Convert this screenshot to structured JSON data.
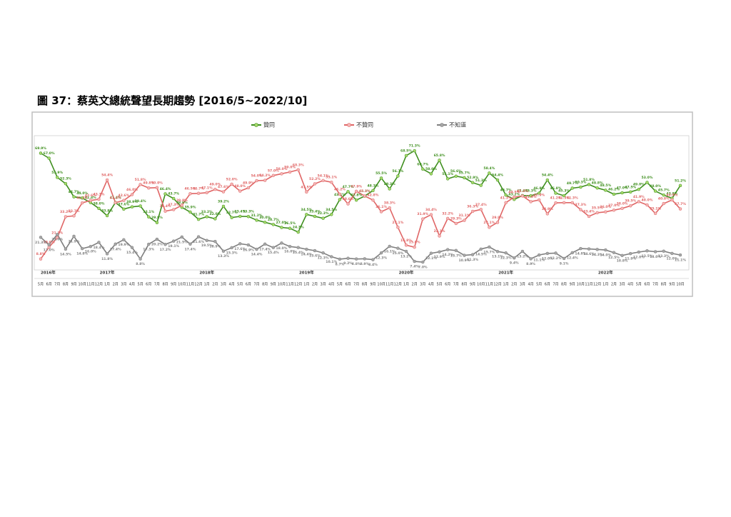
{
  "chart_data": {
    "type": "line",
    "title": "圖 37：蔡英文總統聲望長期趨勢 [2016/5~2022/10]",
    "categories": [
      "5月",
      "6月",
      "7月",
      "8月",
      "9月",
      "10月",
      "11月",
      "12月",
      "1月",
      "2月",
      "3月",
      "4月",
      "5月",
      "6月",
      "7月",
      "8月",
      "9月",
      "10月",
      "11月",
      "12月",
      "1月",
      "2月",
      "3月",
      "4月",
      "5月",
      "6月",
      "7月",
      "8月",
      "9月",
      "10月",
      "11月",
      "12月",
      "1月",
      "2月",
      "3月",
      "4月",
      "5月",
      "6月",
      "7月",
      "8月",
      "9月",
      "10月",
      "11月",
      "12月",
      "1月",
      "2月",
      "3月",
      "4月",
      "5月",
      "6月",
      "7月",
      "8月",
      "9月",
      "10月",
      "11月",
      "12月",
      "1月",
      "2月",
      "3月",
      "4月",
      "5月",
      "6月",
      "7月",
      "8月",
      "9月",
      "10月",
      "11月",
      "12月",
      "1月",
      "2月",
      "3月",
      "4月",
      "5月",
      "6月",
      "7月",
      "8月",
      "9月",
      "10月"
    ],
    "years": [
      "2016年",
      "2017年",
      "2018年",
      "2019年",
      "2020年",
      "2021年",
      "2022年"
    ],
    "ylim": [
      0,
      80
    ],
    "series": [
      {
        "name": "贊同",
        "color": "#3f8f1f",
        "marker": "#a6d96a",
        "values": [
          69.9,
          67.0,
          55.9,
          52.3,
          44.7,
          44.0,
          41.4,
          38.0,
          33.8,
          41.4,
          37.6,
          38.9,
          39.4,
          33.1,
          29.8,
          46.4,
          43.7,
          38.6,
          35.9,
          31.7,
          33.2,
          32.0,
          39.2,
          32.7,
          33.4,
          33.3,
          31.2,
          30.0,
          28.7,
          27.0,
          26.5,
          24.3,
          34.5,
          33.4,
          32.3,
          34.5,
          43.1,
          47.7,
          42.8,
          45.1,
          48.3,
          55.5,
          49.3,
          56.7,
          68.5,
          71.3,
          60.7,
          58.0,
          65.8,
          55.1,
          56.6,
          55.7,
          52.9,
          51.3,
          58.4,
          54.4,
          45.7,
          43.2,
          45.4,
          45.3,
          46.8,
          54.4,
          46.8,
          45.3,
          49.7,
          50.3,
          51.8,
          49.8,
          48.5,
          46.2,
          47.0,
          47.5,
          49.0,
          53.0,
          48.0,
          45.7,
          43.8,
          51.2
        ],
        "value_labels": [
          "69.9%",
          "67.0%",
          "55.9%",
          "52.3%",
          "44.7%",
          "44.0%",
          "41.4%",
          "38.0%",
          "33.8%",
          "41.4%",
          "37.6%",
          "38.9%",
          "39.4%",
          "33.1%",
          "29.8%",
          "46.4%",
          "43.7%",
          "38.6%",
          "35.9%",
          "31.7%",
          "33.2%",
          "32.0%",
          "39.2%",
          "32.7%",
          "33.4%",
          "33.3%",
          "31.2%",
          "30.0%",
          "28.7%",
          "27.0%",
          "26.5%",
          "24.3%",
          "34.5%",
          "33.4%",
          "32.3%",
          "34.5%",
          "43.1%",
          "47.7%",
          "42.8%",
          "45.1%",
          "48.3%",
          "55.5%",
          "49.3%",
          "56.7%",
          "68.5%",
          "71.3%",
          "60.7%",
          "58.0%",
          "65.8%",
          "55.1%",
          "56.6%",
          "55.7%",
          "52.9%",
          "51.3%",
          "58.4%",
          "54.4%",
          "45.7%",
          "43.2%",
          "45.4%",
          "45.3%",
          "46.8%",
          "54.4%",
          "46.8%",
          "45.3%",
          "49.7%",
          "50.3%",
          "51.8%",
          "49.8%",
          "48.5%",
          "46.2%",
          "47.0%",
          "47.5%",
          "49.0%",
          "53.0%",
          "48.0%",
          "45.7%",
          "43.8%",
          "51.2%"
        ]
      },
      {
        "name": "不贊同",
        "color": "#e06666",
        "marker": "#f4b6b6",
        "values": [
          8.8,
          15.6,
          21.1,
          33.2,
          33.7,
          41.2,
          42.6,
          43.3,
          54.4,
          41.3,
          42.6,
          46.0,
          51.8,
          49.8,
          50.0,
          36.4,
          37.3,
          39.8,
          46.5,
          46.7,
          47.1,
          49.0,
          47.6,
          52.0,
          48.0,
          49.9,
          54.0,
          54.2,
          57.0,
          58.0,
          59.0,
          60.3,
          47.5,
          52.2,
          54.1,
          53.1,
          46.2,
          40.6,
          47.9,
          45.2,
          42.8,
          36.1,
          38.3,
          27.1,
          16.8,
          15.6,
          31.9,
          34.4,
          22.1,
          32.2,
          29.3,
          31.1,
          36.3,
          37.4,
          27.1,
          29.9,
          41.3,
          44.5,
          45.2,
          41.9,
          42.9,
          34.9,
          41.2,
          41.3,
          41.3,
          37.3,
          33.4,
          35.5,
          36.0,
          37.0,
          38.0,
          39.5,
          41.9,
          40.0,
          35.1,
          40.8,
          42.9,
          37.7
        ],
        "value_labels": [
          "8.8%",
          "15.6%",
          "21.1%",
          "33.2%",
          "33.7%",
          "41.2%",
          "42.6%",
          "43.3%",
          "54.4%",
          "41.3%",
          "42.6%",
          "46.0%",
          "51.8%",
          "49.8%",
          "50.0%",
          "36.4%",
          "37.3%",
          "39.8%",
          "46.5%",
          "46.7%",
          "47.1%",
          "49.0%",
          "47.6%",
          "52.0%",
          "48.0%",
          "49.9%",
          "54.0%",
          "54.2%",
          "57.0%",
          "58.0%",
          "59.0%",
          "60.3%",
          "47.5%",
          "52.2%",
          "54.1%",
          "53.1%",
          "46.2%",
          "40.6%",
          "47.9%",
          "45.2%",
          "42.8%",
          "36.1%",
          "38.3%",
          "27.1%",
          "16.8%",
          "15.6%",
          "31.9%",
          "34.4%",
          "22.1%",
          "32.2%",
          "29.3%",
          "31.1%",
          "36.3%",
          "37.4%",
          "27.1%",
          "29.9%",
          "41.3%",
          "44.5%",
          "45.2%",
          "41.9%",
          "42.9%",
          "34.9%",
          "41.2%",
          "41.3%",
          "41.3%",
          "37.3%",
          "33.4%",
          "35.5%",
          "36.0%",
          "37.0%",
          "38.0%",
          "39.5%",
          "41.9%",
          "40.0%",
          "35.1%",
          "40.8%",
          "42.9%",
          "37.7%"
        ]
      },
      {
        "name": "不知道",
        "color": "#7f7f7f",
        "marker": "#a6a6a6",
        "values": [
          21.3,
          17.0,
          23.0,
          14.5,
          21.9,
          14.8,
          16.0,
          18.4,
          11.8,
          17.4,
          19.9,
          15.4,
          8.8,
          17.3,
          20.2,
          17.2,
          19.1,
          21.5,
          17.4,
          21.6,
          19.5,
          18.9,
          13.3,
          15.3,
          17.6,
          16.9,
          14.4,
          17.4,
          15.4,
          18.0,
          16.0,
          15.4,
          14.4,
          13.6,
          12.3,
          10.1,
          8.7,
          9.2,
          8.8,
          8.9,
          8.4,
          12.3,
          16.1,
          15.0,
          13.2,
          7.4,
          7.0,
          12.1,
          12.9,
          14.2,
          13.7,
          10.9,
          11.3,
          14.5,
          15.7,
          13.1,
          12.3,
          9.4,
          13.2,
          8.9,
          11.1,
          12.0,
          12.2,
          9.1,
          12.4,
          14.8,
          14.6,
          14.3,
          14.0,
          12.5,
          10.8,
          11.9,
          12.8,
          13.5,
          13.0,
          13.3,
          12.0,
          11.1
        ],
        "value_labels": [
          "21.3%",
          "17.0%",
          "23.0%",
          "14.5%",
          "21.9%",
          "14.8%",
          "16.0%",
          "18.4%",
          "11.8%",
          "17.4%",
          "19.9%",
          "15.4%",
          "8.8%",
          "17.3%",
          "20.2%",
          "17.2%",
          "19.1%",
          "21.5%",
          "17.4%",
          "21.6%",
          "19.5%",
          "18.9%",
          "13.3%",
          "15.3%",
          "17.6%",
          "16.9%",
          "14.4%",
          "17.4%",
          "15.4%",
          "18.0%",
          "16.0%",
          "15.4%",
          "14.4%",
          "13.6%",
          "12.3%",
          "10.1%",
          "8.7%",
          "9.2%",
          "8.8%",
          "8.9%",
          "8.4%",
          "12.3%",
          "16.1%",
          "15.0%",
          "13.2%",
          "7.4%",
          "7.0%",
          "12.1%",
          "12.9%",
          "14.2%",
          "13.7%",
          "10.9%",
          "11.3%",
          "14.5%",
          "15.7%",
          "13.1%",
          "12.3%",
          "9.4%",
          "13.2%",
          "8.9%",
          "11.1%",
          "12.0%",
          "12.2%",
          "9.1%",
          "12.4%",
          "14.8%",
          "14.6%",
          "14.3%",
          "14.0%",
          "12.5%",
          "10.8%",
          "11.9%",
          "12.8%",
          "13.5%",
          "13.0%",
          "13.3%",
          "12.0%",
          "11.1%"
        ]
      }
    ]
  }
}
